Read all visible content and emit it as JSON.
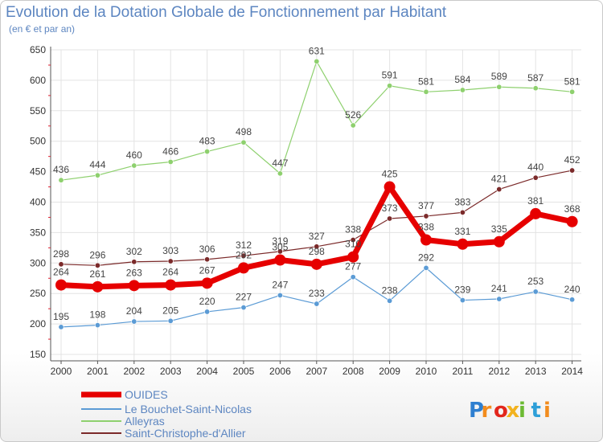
{
  "title": "Evolution de la Dotation Globale de Fonctionnement par Habitant",
  "subtitle": "(en € et par an)",
  "brand": "Proxiti",
  "chart_data": {
    "type": "line",
    "categories": [
      "2000",
      "2001",
      "2002",
      "2003",
      "2004",
      "2005",
      "2006",
      "2007",
      "2008",
      "2009",
      "2010",
      "2011",
      "2012",
      "2013",
      "2014"
    ],
    "ylim": [
      150,
      650
    ],
    "yticks": [
      150,
      200,
      250,
      300,
      350,
      400,
      450,
      500,
      550,
      600,
      650
    ],
    "grid": true,
    "legend_position": "bottom-left",
    "series": [
      {
        "name": "OUIDES",
        "color": "#e60000",
        "emphasis": true,
        "values": [
          264,
          261,
          263,
          264,
          267,
          292,
          305,
          298,
          310,
          425,
          338,
          331,
          335,
          381,
          368
        ]
      },
      {
        "name": "Le Bouchet-Saint-Nicolas",
        "color": "#5b9bd5",
        "values": [
          195,
          198,
          204,
          205,
          220,
          227,
          247,
          233,
          277,
          238,
          292,
          239,
          241,
          253,
          240
        ]
      },
      {
        "name": "Alleyras",
        "color": "#8ed06e",
        "values": [
          436,
          444,
          460,
          466,
          483,
          498,
          447,
          631,
          526,
          591,
          581,
          584,
          589,
          587,
          581
        ]
      },
      {
        "name": "Saint-Christophe-d'Allier",
        "color": "#7b2a2a",
        "values": [
          298,
          296,
          302,
          303,
          306,
          312,
          319,
          327,
          338,
          373,
          377,
          383,
          421,
          440,
          452
        ]
      }
    ]
  }
}
